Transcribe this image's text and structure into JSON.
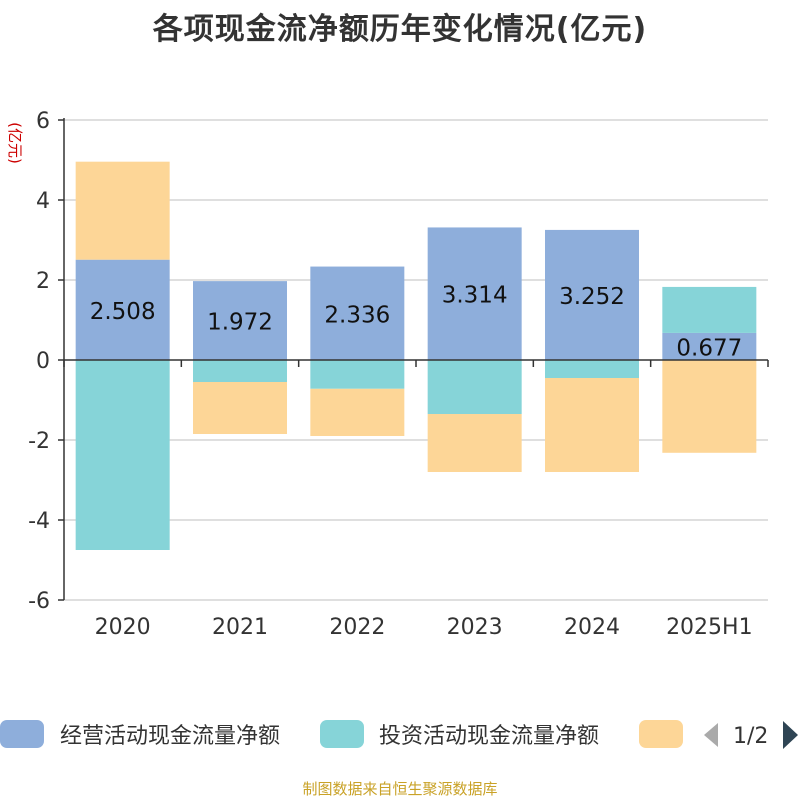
{
  "title": "各项现金流净额历年变化情况(亿元)",
  "footer": "制图数据来自恒生聚源数据库",
  "colors": {
    "operating": "#8eaedb",
    "investing": "#86d4d8",
    "financing": "#fdd697",
    "axis": "#333333",
    "grid": "#cccccc",
    "ylabel": "#cc0000",
    "nav_active": "#2f4554",
    "nav_inactive": "#aaaaaa"
  },
  "legend": {
    "page_indicator": "1/2",
    "prev_icon": "triangle-left-icon",
    "next_icon": "triangle-right-icon"
  },
  "chart_data": {
    "type": "bar",
    "stacked": true,
    "ylabel": "(亿元)",
    "ylim": [
      -6,
      6
    ],
    "yticks": [
      -6,
      -4,
      -2,
      0,
      2,
      4,
      6
    ],
    "grid": true,
    "legend_position": "bottom",
    "categories": [
      "2020",
      "2021",
      "2022",
      "2023",
      "2024",
      "2025H1"
    ],
    "series": [
      {
        "name": "经营活动现金流量净额",
        "key": "operating",
        "values": [
          2.508,
          1.972,
          2.336,
          3.314,
          3.252,
          0.677
        ],
        "labels": [
          "2.508",
          "1.972",
          "2.336",
          "3.314",
          "3.252",
          "0.677"
        ]
      },
      {
        "name": "投资活动现金流量净额",
        "key": "investing",
        "values": [
          -4.75,
          -0.55,
          -0.72,
          -1.35,
          -0.45,
          1.15
        ]
      },
      {
        "key": "financing",
        "values": [
          2.45,
          -1.3,
          -1.18,
          -1.45,
          -2.35,
          -2.32
        ]
      }
    ]
  }
}
